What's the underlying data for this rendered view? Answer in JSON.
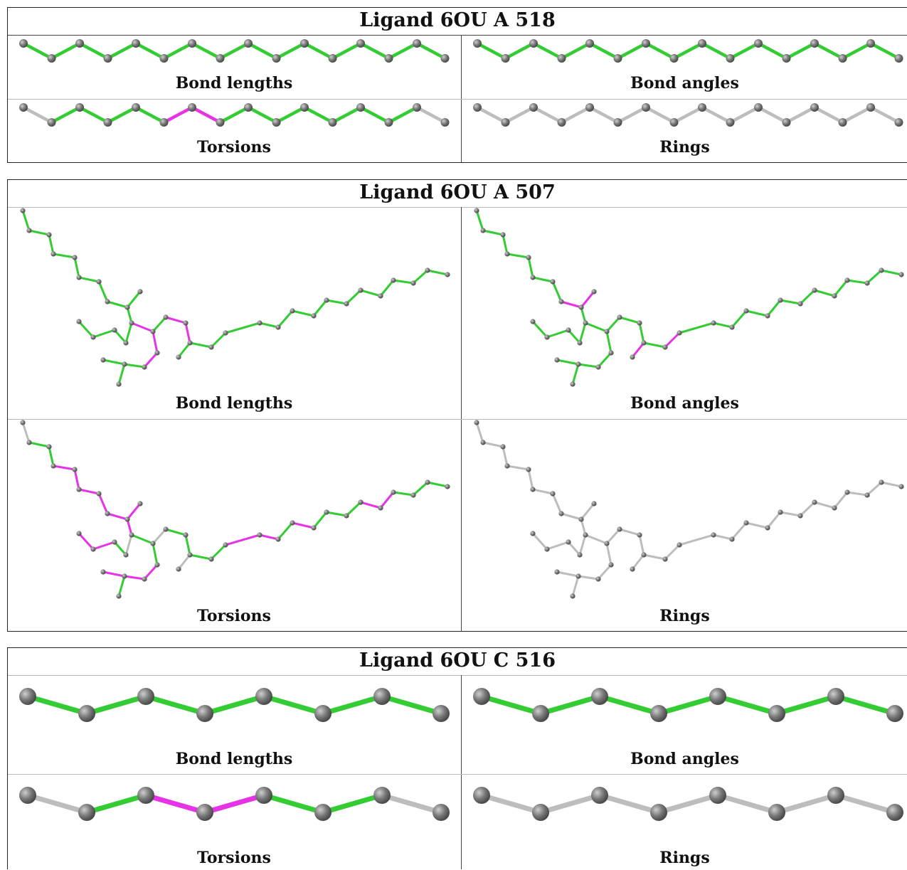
{
  "colors": {
    "ok": "#33cc33",
    "outlier": "#e533e5",
    "none": "#bdbdbd",
    "atom": "#7a7a7a"
  },
  "blocks": [
    {
      "title": "Ligand 6OU A 518",
      "panels": [
        {
          "label": "Bond lengths",
          "bonds": "all-green"
        },
        {
          "label": "Bond angles",
          "bonds": "all-green"
        },
        {
          "label": "Torsions",
          "bonds": "green-with-one-magenta-pair"
        },
        {
          "label": "Rings",
          "bonds": "all-grey"
        }
      ]
    },
    {
      "title": "Ligand 6OU A 507",
      "panels": [
        {
          "label": "Bond lengths",
          "bonds": "mostly-green"
        },
        {
          "label": "Bond angles",
          "bonds": "mostly-green"
        },
        {
          "label": "Torsions",
          "bonds": "green-and-magenta"
        },
        {
          "label": "Rings",
          "bonds": "all-grey"
        }
      ]
    },
    {
      "title": "Ligand 6OU C 516",
      "panels": [
        {
          "label": "Bond lengths",
          "bonds": "all-green"
        },
        {
          "label": "Bond angles",
          "bonds": "all-green"
        },
        {
          "label": "Torsions",
          "bonds": "green-with-magenta-middle"
        },
        {
          "label": "Rings",
          "bonds": "all-grey"
        }
      ]
    }
  ]
}
